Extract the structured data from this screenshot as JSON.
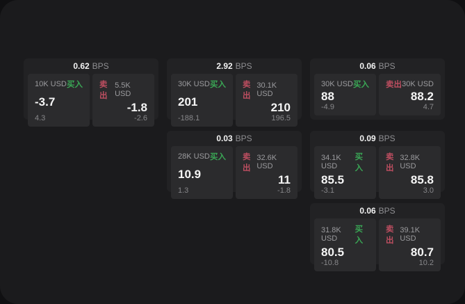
{
  "window": {
    "bps_suffix": "BPS",
    "buy_label": "买入",
    "sell_label": "卖出"
  },
  "colors": {
    "buy": "#3aa655",
    "sell": "#bd4e60",
    "panel": "#1b1b1d",
    "card": "#222224",
    "tile": "#2b2b2d"
  },
  "cards": [
    {
      "row": 1,
      "col": 1,
      "bps": "0.62",
      "buy": {
        "amount": "10K USD",
        "value": "-3.7",
        "delta": "4.3"
      },
      "sell": {
        "amount": "5.5K USD",
        "value": "-1.8",
        "delta": "-2.6"
      }
    },
    {
      "row": 1,
      "col": 2,
      "bps": "2.92",
      "buy": {
        "amount": "30K USD",
        "value": "201",
        "delta": "-188.1"
      },
      "sell": {
        "amount": "30.1K USD",
        "value": "210",
        "delta": "196.5"
      }
    },
    {
      "row": 1,
      "col": 3,
      "bps": "0.06",
      "buy": {
        "amount": "30K USD",
        "value": "88",
        "delta": "-4.9"
      },
      "sell": {
        "amount": "30K USD",
        "value": "88.2",
        "delta": "4.7"
      }
    },
    {
      "row": 2,
      "col": 2,
      "bps": "0.03",
      "buy": {
        "amount": "28K USD",
        "value": "10.9",
        "delta": "1.3"
      },
      "sell": {
        "amount": "32.6K USD",
        "value": "11",
        "delta": "-1.8"
      }
    },
    {
      "row": 2,
      "col": 3,
      "bps": "0.09",
      "buy": {
        "amount": "34.1K USD",
        "value": "85.5",
        "delta": "-3.1"
      },
      "sell": {
        "amount": "32.8K USD",
        "value": "85.8",
        "delta": "3.0"
      }
    },
    {
      "row": 3,
      "col": 3,
      "bps": "0.06",
      "buy": {
        "amount": "31.8K USD",
        "value": "80.5",
        "delta": "-10.8"
      },
      "sell": {
        "amount": "39.1K USD",
        "value": "80.7",
        "delta": "10.2"
      }
    }
  ]
}
